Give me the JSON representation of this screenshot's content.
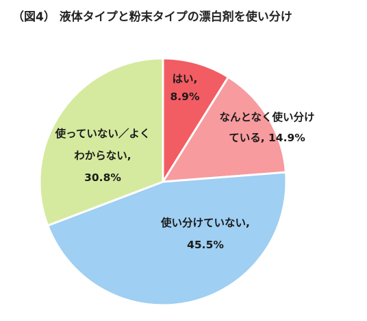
{
  "chart_data": {
    "type": "pie",
    "title": "（図4） 液体タイプと粉末タイプの漂白剤を使い分け",
    "start_angle_deg": 0,
    "direction": "clockwise",
    "slices": [
      {
        "label_lines": [
          "はい,",
          "8.9%"
        ],
        "value": 8.9,
        "color": "#f25c63"
      },
      {
        "label_lines": [
          "なんとなく使い分け",
          "ている, 14.9%"
        ],
        "value": 14.9,
        "color": "#f79b9e"
      },
      {
        "label_lines": [
          "使い分けていない,",
          "45.5%"
        ],
        "value": 45.5,
        "color": "#9fcff2"
      },
      {
        "label_lines": [
          "使っていない／よく",
          "わからない,",
          "30.8%"
        ],
        "value": 30.8,
        "color": "#d5ea9e"
      }
    ]
  }
}
